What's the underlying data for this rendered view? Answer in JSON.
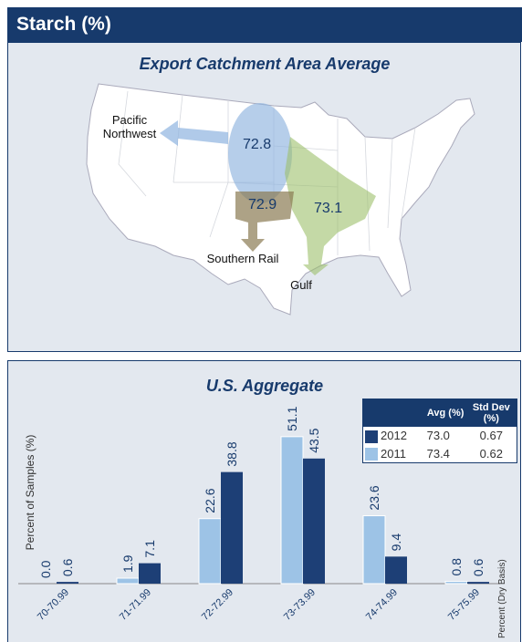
{
  "header": {
    "title": "Starch (%)"
  },
  "map": {
    "title": "Export Catchment Area Average",
    "labels": {
      "pacific_northwest": "Pacific Northwest",
      "southern_rail": "Southern Rail",
      "gulf": "Gulf"
    },
    "regions": {
      "pacific_northwest": "72.8",
      "southern_rail": "72.9",
      "gulf": "73.1"
    }
  },
  "chart_data": {
    "type": "bar",
    "title": "U.S. Aggregate",
    "y_label": "Percent of Samples (%)",
    "x_label": "Percent (Dry Basis)",
    "categories": [
      "70-70.99",
      "71-71.99",
      "72-72.99",
      "73-73.99",
      "74-74.99",
      "75-75.99"
    ],
    "series": [
      {
        "name": "2011",
        "color": "#9dc3e6",
        "values": [
          0,
          1.9,
          22.6,
          51.1,
          23.6,
          0.8
        ],
        "value_labels": [
          "0.0",
          "1.9",
          "22.6",
          "51.1",
          "23.6",
          "0.8"
        ],
        "avg": "73.4",
        "std_dev": "0.62"
      },
      {
        "name": "2012",
        "color": "#1d3f76",
        "values": [
          0.6,
          7.1,
          38.8,
          43.5,
          9.4,
          0.6
        ],
        "value_labels": [
          "0.6",
          "7.1",
          "38.8",
          "43.5",
          "9.4",
          "0.6"
        ],
        "avg": "73.0",
        "std_dev": "0.67"
      }
    ],
    "legend_columns": [
      "Avg (%)",
      "Std Dev (%)"
    ],
    "ylim": [
      0,
      65
    ]
  }
}
